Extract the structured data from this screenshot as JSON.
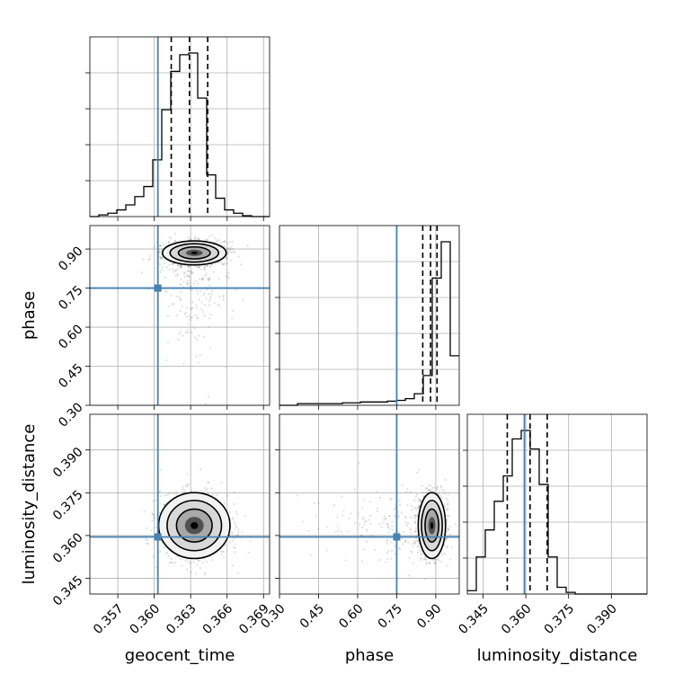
{
  "chart_data": {
    "type": "corner",
    "parameters": [
      "geocent_time",
      "phase",
      "luminosity_distance"
    ],
    "axis_labels": {
      "geocent_time": "geocent_time",
      "phase": "phase",
      "luminosity_distance": "luminosity_distance"
    },
    "ranges": {
      "geocent_time": [
        0.3547,
        0.3695
      ],
      "phase": [
        0.3,
        0.99
      ],
      "luminosity_distance": [
        0.3395,
        0.4025
      ]
    },
    "ticks": {
      "geocent_time": [
        "0.357",
        "0.360",
        "0.363",
        "0.366",
        "0.369"
      ],
      "phase": [
        "0.30",
        "0.45",
        "0.60",
        "0.75",
        "0.90"
      ],
      "luminosity_distance": [
        "0.345",
        "0.360",
        "0.375",
        "0.390"
      ]
    },
    "truths": {
      "geocent_time": 0.3603,
      "phase": 0.75,
      "luminosity_distance": 0.3595
    },
    "quantiles": {
      "geocent_time": [
        0.3614,
        0.3629,
        0.3644
      ],
      "phase": [
        0.85,
        0.88,
        0.905
      ],
      "luminosity_distance": [
        0.3535,
        0.3615,
        0.3675
      ]
    },
    "histograms": {
      "geocent_time": {
        "bin_edges": [
          0.3547,
          0.35544,
          0.35618,
          0.35692,
          0.35766,
          0.3584,
          0.35914,
          0.35988,
          0.36062,
          0.36136,
          0.3621,
          0.36284,
          0.36358,
          0.36432,
          0.36506,
          0.3658,
          0.36654,
          0.36728,
          0.36802,
          0.36876,
          0.3695
        ],
        "counts": [
          0,
          0.01,
          0.02,
          0.04,
          0.07,
          0.12,
          0.18,
          0.34,
          0.64,
          0.87,
          0.97,
          0.98,
          0.71,
          0.25,
          0.11,
          0.04,
          0.02,
          0.005,
          0,
          0
        ]
      },
      "phase": {
        "bin_edges": [
          0.3,
          0.3345,
          0.369,
          0.4035,
          0.438,
          0.4725,
          0.507,
          0.5415,
          0.576,
          0.6105,
          0.645,
          0.6795,
          0.714,
          0.7485,
          0.783,
          0.8175,
          0.852,
          0.8865,
          0.921,
          0.9555,
          0.99
        ],
        "counts": [
          0,
          0,
          0.01,
          0.01,
          0.01,
          0.01,
          0.01,
          0.015,
          0.015,
          0.02,
          0.02,
          0.02,
          0.025,
          0.03,
          0.04,
          0.07,
          0.18,
          0.77,
          0.99,
          0.3
        ]
      },
      "luminosity_distance": {
        "bin_edges": [
          0.3395,
          0.34265,
          0.3458,
          0.34895,
          0.3521,
          0.35525,
          0.3584,
          0.36155,
          0.3647,
          0.36785,
          0.371,
          0.37415,
          0.3773,
          0.38045,
          0.3836,
          0.38675,
          0.3899,
          0.39305,
          0.3962,
          0.39935,
          0.4025
        ],
        "counts": [
          0.02,
          0.22,
          0.38,
          0.55,
          0.7,
          0.92,
          0.97,
          0.86,
          0.65,
          0.22,
          0.04,
          0.01,
          0,
          0,
          0,
          0,
          0,
          0,
          0,
          0
        ]
      }
    },
    "scatter_panels": [
      {
        "x": "geocent_time",
        "y": "phase",
        "center": [
          0.3633,
          0.885
        ],
        "spread": [
          0.00125,
          0.022
        ],
        "tail": "down"
      },
      {
        "x": "geocent_time",
        "y": "luminosity_distance",
        "center": [
          0.3633,
          0.3635
        ],
        "spread": [
          0.0014,
          0.0055
        ],
        "tail": "none"
      },
      {
        "x": "phase",
        "y": "luminosity_distance",
        "center": [
          0.885,
          0.3635
        ],
        "spread": [
          0.025,
          0.0055
        ],
        "tail": "left"
      }
    ],
    "grid": true
  }
}
